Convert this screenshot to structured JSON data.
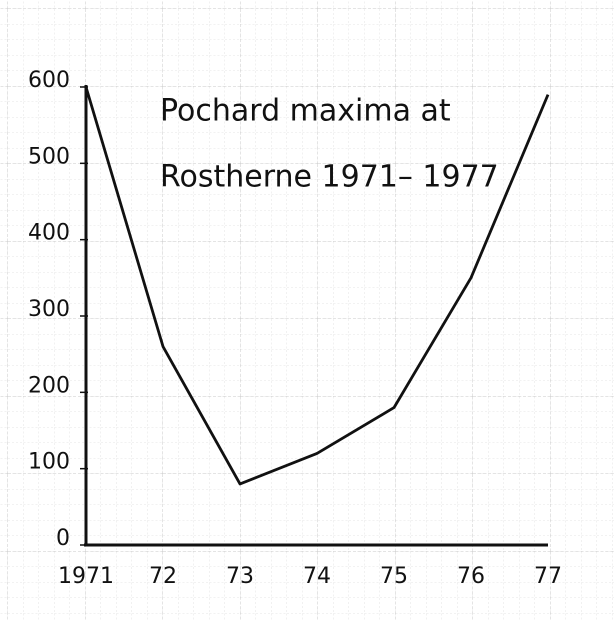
{
  "chart_data": {
    "type": "line",
    "title": [
      "Pochard maxima at",
      "Rostherne 1971– 1977"
    ],
    "categories": [
      "1971",
      "72",
      "73",
      "74",
      "75",
      "76",
      "77"
    ],
    "values": [
      600,
      260,
      80,
      120,
      180,
      350,
      590
    ],
    "color": "#111111",
    "ylim": [
      0,
      600
    ],
    "yticks": [
      0,
      100,
      200,
      300,
      400,
      500,
      600
    ]
  }
}
